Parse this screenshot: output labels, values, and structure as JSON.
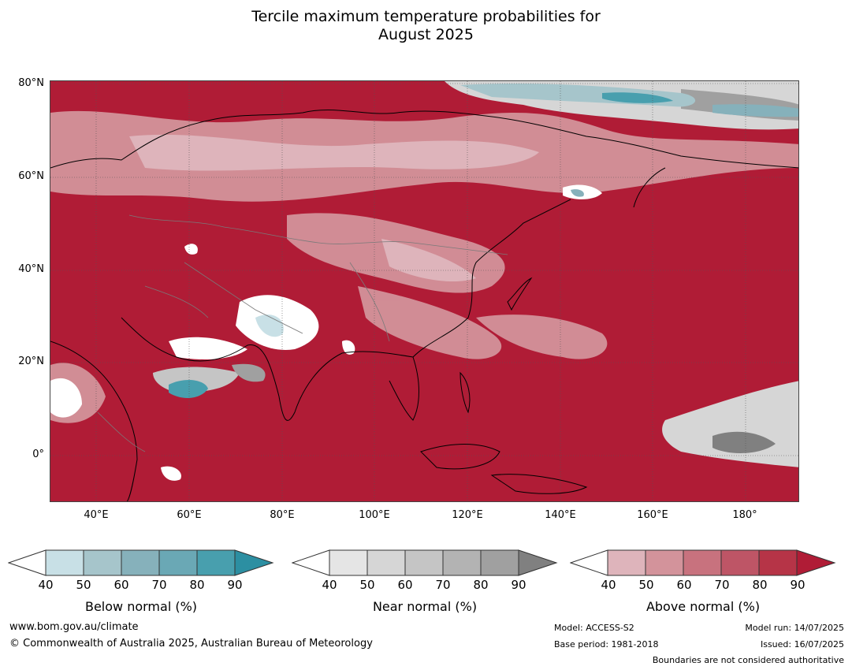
{
  "title": {
    "line1": "Tercile maximum temperature probabilities for",
    "line2": "August 2025"
  },
  "map": {
    "lat_labels": [
      "80°N",
      "60°N",
      "40°N",
      "20°N",
      "0°"
    ],
    "lon_labels": [
      "40°E",
      "60°E",
      "80°E",
      "100°E",
      "120°E",
      "140°E",
      "160°E",
      "180°"
    ],
    "background_color": "#b01c36"
  },
  "colorbars": [
    {
      "label": "Below normal (%)",
      "ticks": [
        "40",
        "50",
        "60",
        "70",
        "80",
        "90"
      ],
      "colors": [
        "#ffffff",
        "#c8e0e6",
        "#a6c5cb",
        "#86b1bb",
        "#6aa8b5",
        "#489fae",
        "#2c8fa2"
      ]
    },
    {
      "label": "Near normal (%)",
      "ticks": [
        "40",
        "50",
        "60",
        "70",
        "80",
        "90"
      ],
      "colors": [
        "#ffffff",
        "#e5e5e5",
        "#d6d6d6",
        "#c5c5c5",
        "#b3b3b3",
        "#a0a0a0",
        "#808080"
      ]
    },
    {
      "label": "Above normal (%)",
      "ticks": [
        "40",
        "50",
        "60",
        "70",
        "80",
        "90"
      ],
      "colors": [
        "#ffffff",
        "#deb4bb",
        "#d3939b",
        "#c8727e",
        "#be5566",
        "#b63447",
        "#b01c36"
      ]
    }
  ],
  "footer": {
    "website": "www.bom.gov.au/climate",
    "copyright": "© Commonwealth of Australia 2025, Australian Bureau of Meteorology",
    "model": "Model: ACCESS-S2",
    "base_period": "Base period: 1981-2018",
    "model_run": "Model run: 14/07/2025",
    "issued": "Issued: 16/07/2025",
    "disclaimer": "Boundaries are not considered authoritative"
  }
}
